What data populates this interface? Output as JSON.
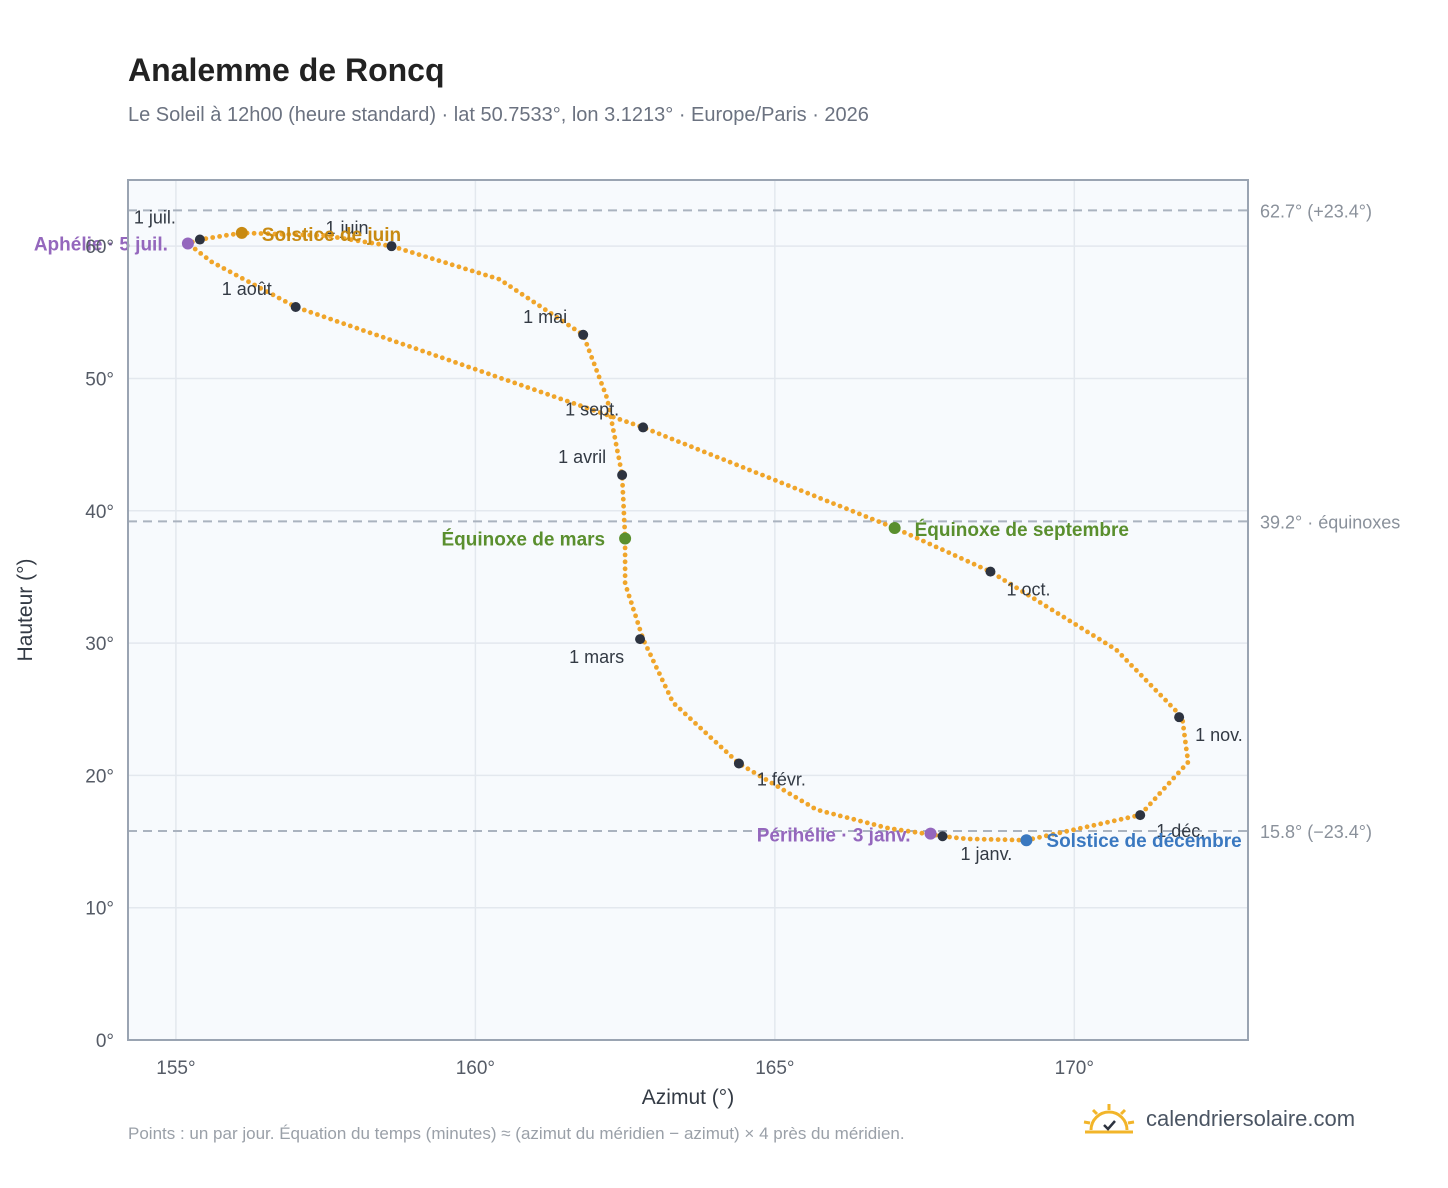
{
  "header": {
    "title": "Analemme de Roncq",
    "subtitle": "Le Soleil à 12h00 (heure standard) · lat 50.7533°, lon 3.1213° · Europe/Paris · 2026"
  },
  "footer": {
    "note": "Points : un par jour. Équation du temps (minutes) ≈ (azimut du méridien − azimut) × 4 près du méridien.",
    "brand": "calendriersolaire.com",
    "brand_icon": "sun-icon"
  },
  "chart_data": {
    "type": "scatter",
    "xlabel": "Azimut (°)",
    "ylabel": "Hauteur (°)",
    "xlim": [
      154.2,
      172.9
    ],
    "ylim": [
      0,
      65
    ],
    "xticks": [
      155,
      160,
      165,
      170
    ],
    "xtick_labels": [
      "155°",
      "160°",
      "165°",
      "170°"
    ],
    "yticks": [
      0,
      10,
      20,
      30,
      40,
      50,
      60
    ],
    "ytick_labels": [
      "0°",
      "10°",
      "20°",
      "30°",
      "40°",
      "50°",
      "60°"
    ],
    "grid": true,
    "colors": {
      "curve": "#f0a52a",
      "month_marker": "#2d3340",
      "solstice_june": "#c88a12",
      "equinox": "#5a8f2e",
      "solstice_december": "#3a78c0",
      "apsis": "#9467bd",
      "reference_line": "#aab3bf",
      "plot_background": "#f7fafd",
      "frame": "#9aa4b2"
    },
    "reference_lines": [
      {
        "y": 62.7,
        "label": "62.7° (+23.4°)"
      },
      {
        "y": 39.2,
        "label": "39.2° · équinoxes"
      },
      {
        "y": 15.8,
        "label": "15.8° (−23.4°)"
      }
    ],
    "daily_path": [
      [
        167.8,
        15.4
      ],
      [
        166.9,
        16.0
      ],
      [
        165.7,
        17.4
      ],
      [
        164.4,
        20.9
      ],
      [
        163.3,
        25.5
      ],
      [
        162.8,
        30.3
      ],
      [
        162.5,
        34.5
      ],
      [
        162.5,
        37.9
      ],
      [
        162.45,
        42.7
      ],
      [
        162.2,
        48.5
      ],
      [
        161.8,
        53.3
      ],
      [
        160.4,
        57.5
      ],
      [
        158.6,
        60.0
      ],
      [
        157.5,
        60.8
      ],
      [
        156.1,
        61.0
      ],
      [
        155.4,
        60.5
      ],
      [
        155.2,
        60.2
      ],
      [
        155.6,
        58.8
      ],
      [
        157.0,
        55.4
      ],
      [
        162.8,
        46.3
      ],
      [
        167.0,
        38.7
      ],
      [
        168.6,
        35.4
      ],
      [
        170.7,
        29.5
      ],
      [
        171.8,
        24.4
      ],
      [
        171.9,
        21.0
      ],
      [
        171.1,
        17.0
      ],
      [
        169.2,
        15.1
      ],
      [
        168.2,
        15.2
      ],
      [
        167.8,
        15.4
      ]
    ],
    "month_markers": [
      {
        "label": "1 janv.",
        "x": 167.8,
        "y": 15.4
      },
      {
        "label": "1 févr.",
        "x": 164.4,
        "y": 20.9
      },
      {
        "label": "1 mars",
        "x": 162.75,
        "y": 30.3
      },
      {
        "label": "1 avril",
        "x": 162.45,
        "y": 42.7
      },
      {
        "label": "1 mai",
        "x": 161.8,
        "y": 53.3
      },
      {
        "label": "1 juin",
        "x": 158.6,
        "y": 60.0
      },
      {
        "label": "1 juil.",
        "x": 155.4,
        "y": 60.5
      },
      {
        "label": "1 août",
        "x": 157.0,
        "y": 55.4
      },
      {
        "label": "1 sept.",
        "x": 162.8,
        "y": 46.3
      },
      {
        "label": "1 oct.",
        "x": 168.6,
        "y": 35.4
      },
      {
        "label": "1 nov.",
        "x": 171.75,
        "y": 24.4
      },
      {
        "label": "1 déc.",
        "x": 171.1,
        "y": 17.0
      }
    ],
    "events": [
      {
        "label": "Solstice de juin",
        "x": 156.1,
        "y": 61.0,
        "kind": "solstice_june"
      },
      {
        "label": "Équinoxe de mars",
        "x": 162.5,
        "y": 37.9,
        "kind": "equinox"
      },
      {
        "label": "Équinoxe de septembre",
        "x": 167.0,
        "y": 38.7,
        "kind": "equinox"
      },
      {
        "label": "Solstice de décembre",
        "x": 169.2,
        "y": 15.1,
        "kind": "solstice_december"
      },
      {
        "label": "Aphélie · 5 juil.",
        "x": 155.2,
        "y": 60.2,
        "kind": "apsis"
      },
      {
        "label": "Périhélie · 3 janv.",
        "x": 167.6,
        "y": 15.6,
        "kind": "apsis"
      }
    ]
  }
}
